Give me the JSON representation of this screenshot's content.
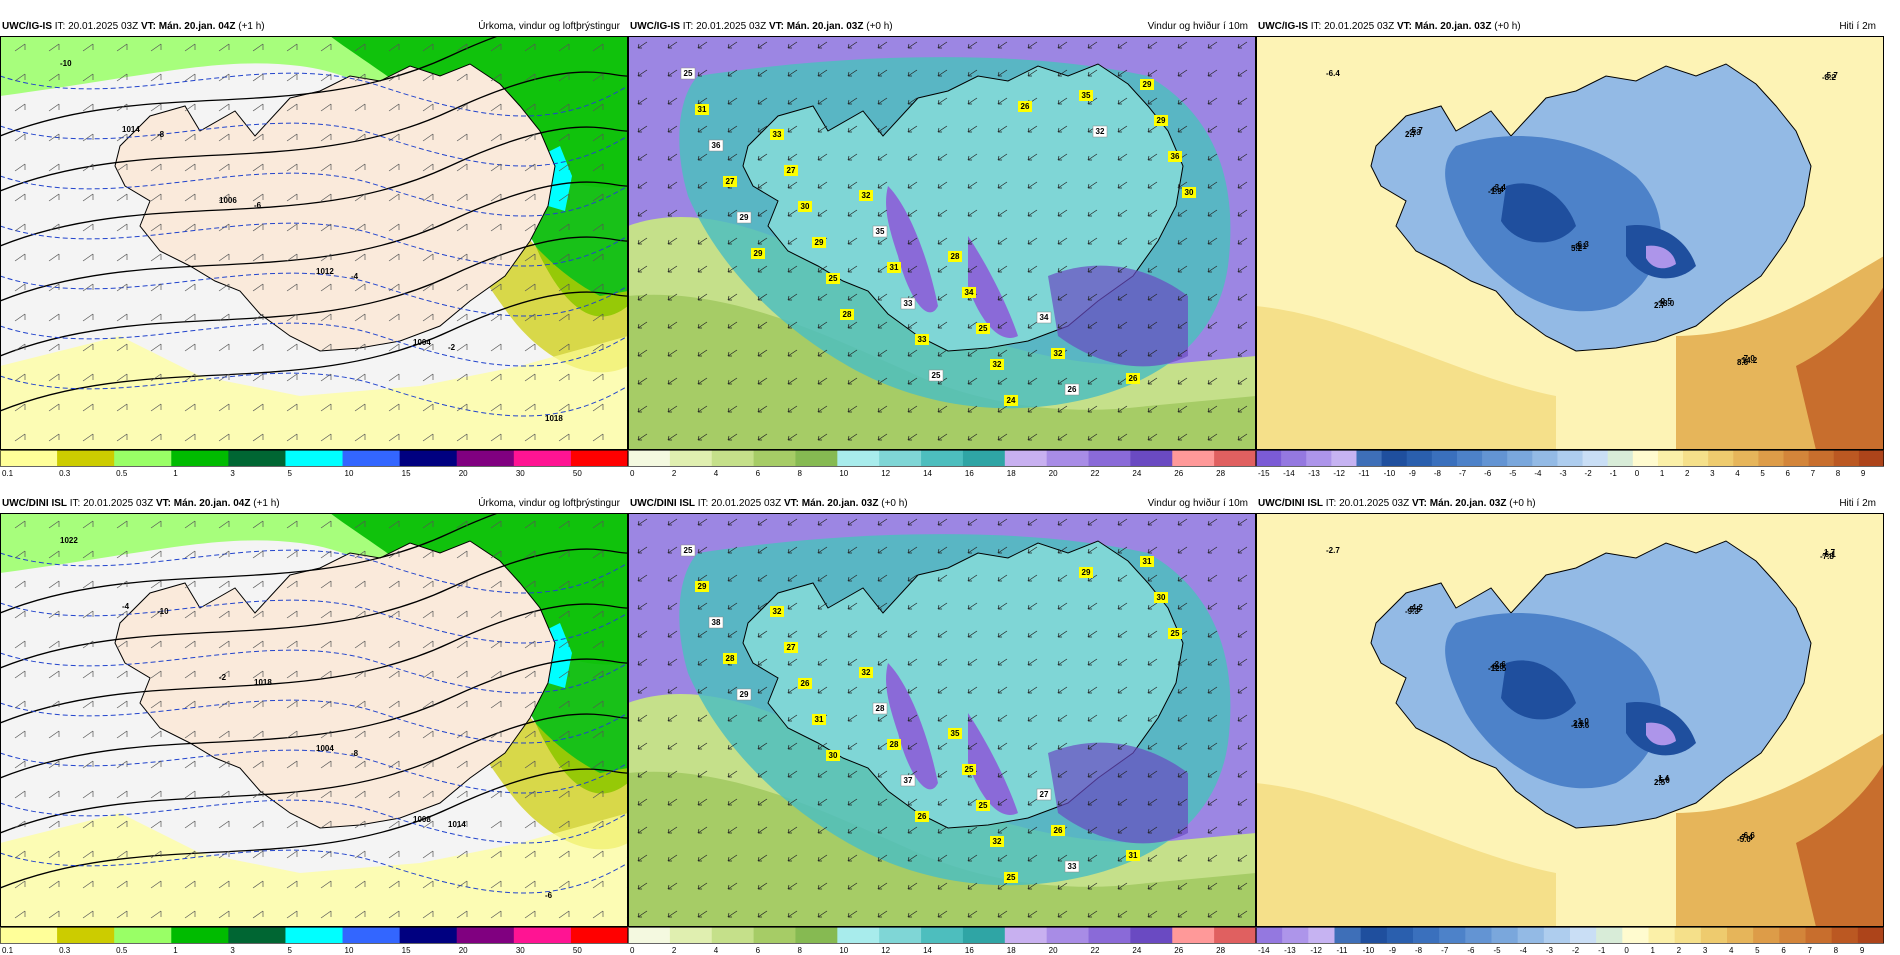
{
  "page_title": "Veðurspá — Úrkoma, vindur og hiti",
  "panels": [
    {
      "id": "p1",
      "model": "UWC/IG-IS",
      "it_label": "IT:",
      "it": "20.01.2025 03Z",
      "vt_label": "VT:",
      "vt": "Mán. 20.jan. 04Z",
      "lead": "(+1 h)",
      "title": "Úrkoma, vindur og loftþrýstingur",
      "type": "precip",
      "colorbar": {
        "labels": [
          "0.1",
          "0.3",
          "0.5",
          "1",
          "3",
          "5",
          "10",
          "15",
          "20",
          "30",
          "50"
        ],
        "colors": [
          "#ffff99",
          "#cccc00",
          "#99ff66",
          "#00bb00",
          "#006633",
          "#00ffff",
          "#3366ff",
          "#000080",
          "#800080",
          "#ff1493",
          "#ff0000"
        ]
      },
      "map_labels": [
        "-10",
        "-8",
        "-6",
        "-4",
        "-2",
        "1018",
        "1014",
        "1006",
        "1012",
        "1004"
      ]
    },
    {
      "id": "p2",
      "model": "UWC/IG-IS",
      "it_label": "IT:",
      "it": "20.01.2025 03Z",
      "vt_label": "VT:",
      "vt": "Mán. 20.jan. 03Z",
      "lead": "(+0 h)",
      "title": "Vindur og hviður í 10m",
      "type": "wind",
      "colorbar": {
        "labels": [
          "0",
          "2",
          "4",
          "6",
          "8",
          "10",
          "12",
          "14",
          "16",
          "18",
          "20",
          "22",
          "24",
          "26",
          "28"
        ],
        "colors": [
          "#f4f9e0",
          "#e0efb0",
          "#c5e08a",
          "#a6cc66",
          "#86ba52",
          "#a8ecec",
          "#7fd6d6",
          "#4dbebe",
          "#2fa5a5",
          "#c8b0f0",
          "#a88ce6",
          "#8a6ad8",
          "#6a4ac2",
          "#ff9999",
          "#e06060"
        ]
      },
      "map_labels": [
        "25",
        "33",
        "32",
        "28",
        "34",
        "26",
        "31",
        "27",
        "35",
        "34",
        "32",
        "29",
        "36",
        "30",
        "31",
        "25",
        "26",
        "29",
        "27",
        "29",
        "33",
        "32",
        "35",
        "36",
        "29",
        "25",
        "33",
        "24",
        "32",
        "30",
        "29",
        "28",
        "25",
        "26"
      ]
    },
    {
      "id": "p3",
      "model": "UWC/IG-IS",
      "it_label": "IT:",
      "it": "20.01.2025 03Z",
      "vt_label": "VT:",
      "vt": "Mán. 20.jan. 03Z",
      "lead": "(+0 h)",
      "title": "Hiti í 2m",
      "type": "temp",
      "colorbar": {
        "labels": [
          "-15",
          "-14",
          "-13",
          "-12",
          "-11",
          "-10",
          "-9",
          "-8",
          "-7",
          "-6",
          "-5",
          "-4",
          "-3",
          "-2",
          "-1",
          "0",
          "1",
          "2",
          "3",
          "4",
          "5",
          "6",
          "7",
          "8",
          "9"
        ],
        "colors": [
          "#7b5bd6",
          "#9478e0",
          "#ad95ea",
          "#c6b3f2",
          "#3e6fb8",
          "#1f4f9e",
          "#2a5fae",
          "#3a70bd",
          "#4d82c9",
          "#6394d3",
          "#7aa7dc",
          "#93bae5",
          "#aecdee",
          "#c9def5",
          "#d8ecd8",
          "#fffbcf",
          "#fbf0a8",
          "#f5e08a",
          "#eecb6e",
          "#e6b55a",
          "#dd9c48",
          "#d3853a",
          "#c86e2d",
          "#bb5822",
          "#ad441a"
        ]
      },
      "map_labels": [
        "-6.4",
        "-5.7",
        "-3.4",
        "-6.3",
        "-9.5",
        "-7.0",
        "-5.7",
        "-2.3",
        "-6.4",
        "-8.1",
        "-13.0",
        "-14.2",
        "-8.2",
        "2.7",
        "-1.9",
        "5.2",
        "2.7",
        "8.6"
      ]
    },
    {
      "id": "p4",
      "model": "UWC/DINI ISL",
      "it_label": "IT:",
      "it": "20.01.2025 03Z",
      "vt_label": "VT:",
      "vt": "Mán. 20.jan. 04Z",
      "lead": "(+1 h)",
      "title": "Úrkoma, vindur og loftþrýstingur",
      "type": "precip",
      "colorbar": {
        "labels": [
          "0.1",
          "0.3",
          "0.5",
          "1",
          "3",
          "5",
          "10",
          "15",
          "20",
          "30",
          "50"
        ],
        "colors": [
          "#ffff99",
          "#cccc00",
          "#99ff66",
          "#00bb00",
          "#006633",
          "#00ffff",
          "#3366ff",
          "#000080",
          "#800080",
          "#ff1493",
          "#ff0000"
        ]
      },
      "map_labels": [
        "1022",
        "-10",
        "1018",
        "-8",
        "1014",
        "-6",
        "-4",
        "-2",
        "1004",
        "1008"
      ]
    },
    {
      "id": "p5",
      "model": "UWC/DINI ISL",
      "it_label": "IT:",
      "it": "20.01.2025 03Z",
      "vt_label": "VT:",
      "vt": "Mán. 20.jan. 03Z",
      "lead": "(+0 h)",
      "title": "Vindur og hviður í 10m",
      "type": "wind",
      "colorbar": {
        "labels": [
          "0",
          "2",
          "4",
          "6",
          "8",
          "10",
          "12",
          "14",
          "16",
          "18",
          "20",
          "22",
          "24",
          "26",
          "28"
        ],
        "colors": [
          "#f4f9e0",
          "#e0efb0",
          "#c5e08a",
          "#a6cc66",
          "#86ba52",
          "#a8ecec",
          "#7fd6d6",
          "#4dbebe",
          "#2fa5a5",
          "#c8b0f0",
          "#a88ce6",
          "#8a6ad8",
          "#6a4ac2",
          "#ff9999",
          "#e06060"
        ]
      },
      "map_labels": [
        "25",
        "32",
        "32",
        "35",
        "27",
        "31",
        "29",
        "27",
        "28",
        "25",
        "26",
        "31",
        "38",
        "26",
        "28",
        "25",
        "33",
        "30",
        "28",
        "31",
        "37",
        "32",
        "29",
        "25",
        "29",
        "30",
        "26",
        "25"
      ]
    },
    {
      "id": "p6",
      "model": "UWC/DINI ISL",
      "it_label": "IT:",
      "it": "20.01.2025 03Z",
      "vt_label": "VT:",
      "vt": "Mán. 20.jan. 03Z",
      "lead": "(+0 h)",
      "title": "Hiti í 2m",
      "type": "temp",
      "colorbar": {
        "labels": [
          "-14",
          "-13",
          "-12",
          "-11",
          "-10",
          "-9",
          "-8",
          "-7",
          "-6",
          "-5",
          "-4",
          "-3",
          "-2",
          "-1",
          "0",
          "1",
          "2",
          "3",
          "4",
          "5",
          "6",
          "7",
          "8",
          "9"
        ],
        "colors": [
          "#9478e0",
          "#ad95ea",
          "#c6b3f2",
          "#3e6fb8",
          "#1f4f9e",
          "#2a5fae",
          "#3a70bd",
          "#4d82c9",
          "#6394d3",
          "#7aa7dc",
          "#93bae5",
          "#aecdee",
          "#c9def5",
          "#d8ecd8",
          "#fffbcf",
          "#fbf0a8",
          "#f5e08a",
          "#eecb6e",
          "#e6b55a",
          "#dd9c48",
          "#d3853a",
          "#c86e2d",
          "#bb5822",
          "#ad441a"
        ]
      },
      "map_labels": [
        "-2.7",
        "-4.2",
        "-2.6",
        "-1.0",
        "1.4",
        "-6.6",
        "1.7",
        "-5.5",
        "-6.8",
        "2.1",
        "-5.0",
        "-7.4",
        "-6.1",
        "-9.3",
        "-12.5",
        "-13.6",
        "2.5",
        "-5.0",
        "-7.8"
      ]
    }
  ]
}
